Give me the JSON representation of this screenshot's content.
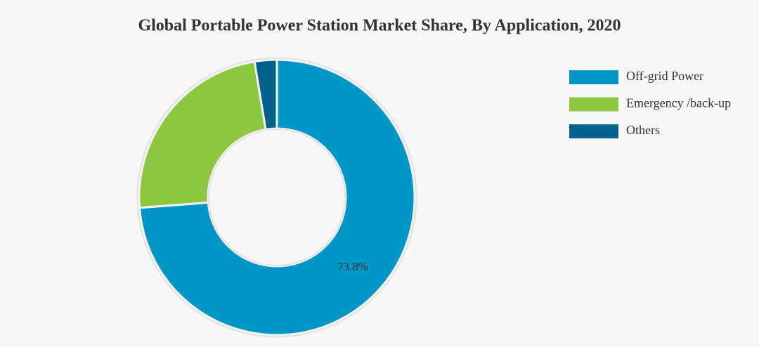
{
  "chart_data": {
    "type": "donut",
    "title": "Global Portable Power Station Market Share, By Application, 2020",
    "categories": [
      "Off-grid Power",
      "Emergency /back-up",
      "Others"
    ],
    "values": [
      73.8,
      23.6,
      2.6
    ],
    "value_labels": [
      "73.8%",
      null,
      null
    ],
    "colors": [
      "#0096c6",
      "#8dc63f",
      "#00628b"
    ],
    "legend": "top-right"
  }
}
